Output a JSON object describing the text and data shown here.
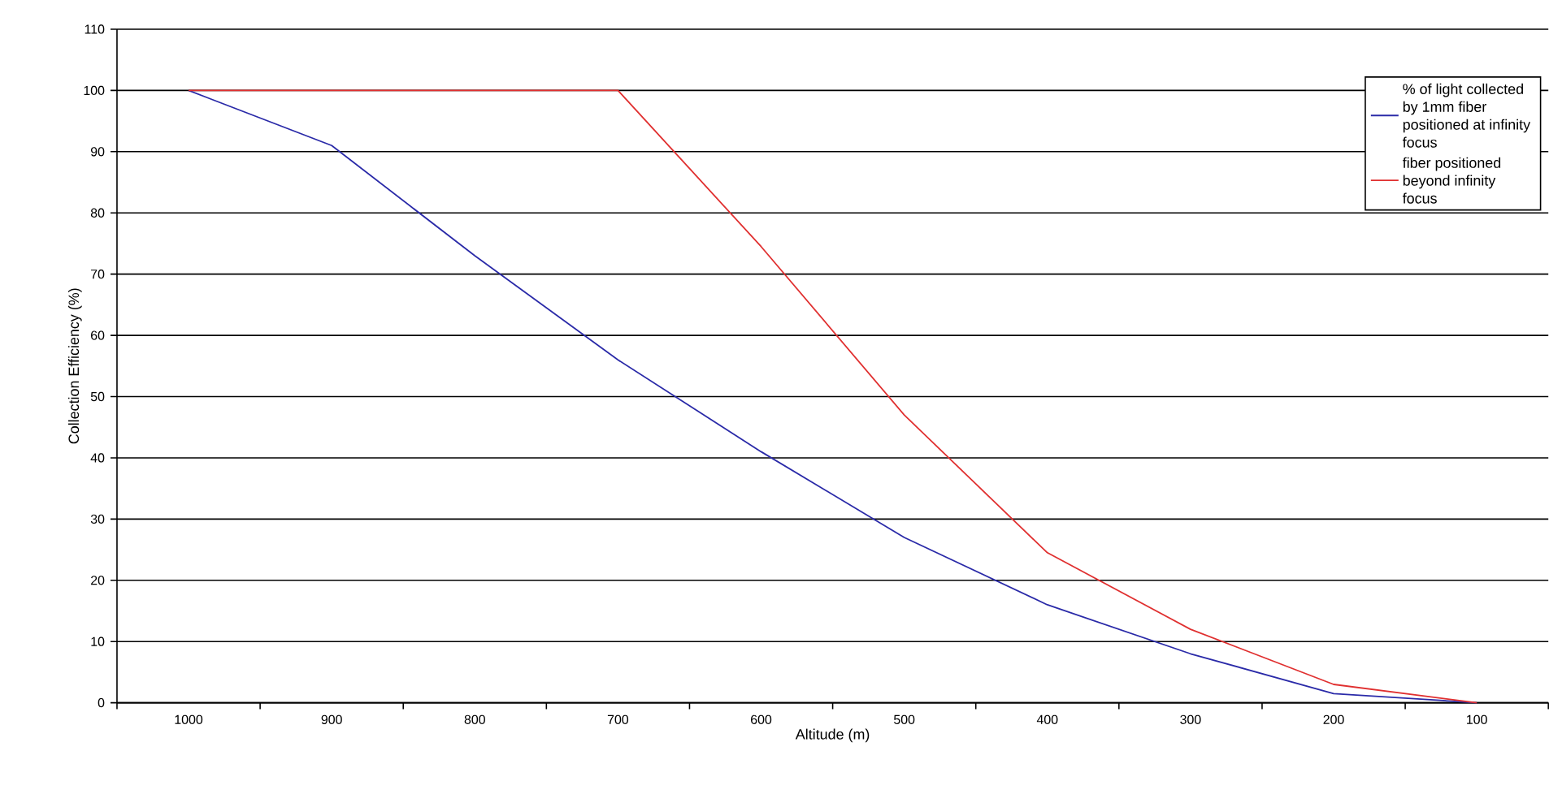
{
  "chart_data": {
    "type": "line",
    "xlabel": "Altitude (m)",
    "ylabel": "Collection Efficiency (%)",
    "categories": [
      "1000",
      "900",
      "800",
      "700",
      "600",
      "500",
      "400",
      "300",
      "200",
      "100"
    ],
    "series": [
      {
        "name": "% of light collected by 1mm fiber positioned at infinity focus",
        "color": "#2a2aa8",
        "values": [
          100,
          91,
          73,
          56,
          41,
          27,
          16,
          8,
          1.5,
          0
        ]
      },
      {
        "name": "fiber positioned beyond infinity focus",
        "color": "#e03030",
        "values": [
          100,
          100,
          100,
          100,
          74.5,
          47,
          24.5,
          12,
          3,
          0
        ]
      }
    ],
    "ylim": [
      0,
      110
    ],
    "yticks": [
      0,
      10,
      20,
      30,
      40,
      50,
      60,
      70,
      80,
      90,
      100,
      110
    ],
    "grid": "y",
    "legend": "top right",
    "marker": "none",
    "line_style": "solid"
  }
}
